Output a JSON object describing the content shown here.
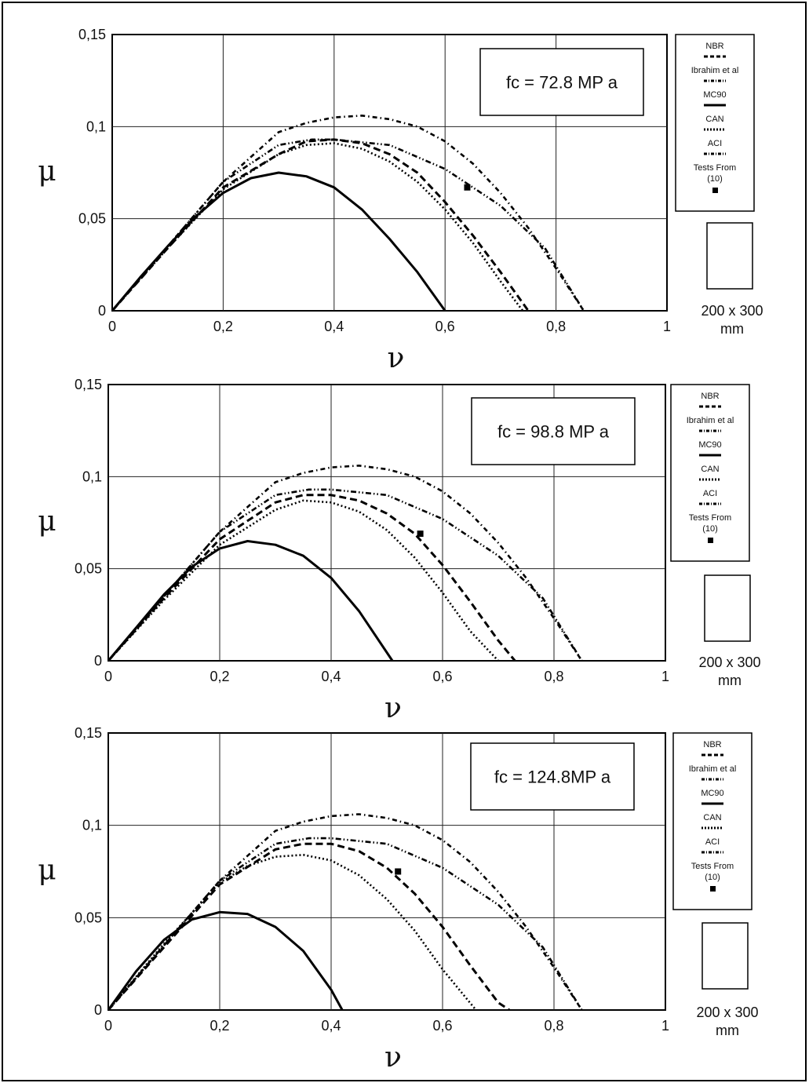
{
  "chart_data": [
    {
      "type": "line",
      "annotation": "fc = 72.8 MP a",
      "xlabel": "ν",
      "ylabel": "μ",
      "xlim": [
        0,
        1
      ],
      "ylim": [
        0,
        0.15
      ],
      "x_ticks": [
        "0",
        "0,2",
        "0,4",
        "0,6",
        "0,8",
        "1"
      ],
      "y_ticks": [
        "0",
        "0,05",
        "0,1",
        "0,15"
      ],
      "grid": true,
      "legend_position": "right",
      "legend": [
        "NBR",
        "Ibrahim et al",
        "MC90",
        "CAN",
        "ACI",
        "Tests From",
        "(10)"
      ],
      "section_note": [
        "200 x 300",
        "mm"
      ],
      "series": [
        {
          "name": "NBR",
          "style": "dashed",
          "x": [
            0,
            0.1,
            0.2,
            0.3,
            0.35,
            0.4,
            0.45,
            0.5,
            0.55,
            0.6,
            0.65,
            0.7,
            0.75
          ],
          "y": [
            0,
            0.034,
            0.067,
            0.085,
            0.092,
            0.093,
            0.091,
            0.085,
            0.075,
            0.059,
            0.041,
            0.021,
            0
          ]
        },
        {
          "name": "Ibrahim et al",
          "style": "dash-dot",
          "x": [
            0,
            0.1,
            0.2,
            0.3,
            0.35,
            0.4,
            0.45,
            0.5,
            0.55,
            0.6,
            0.65,
            0.7,
            0.75,
            0.8,
            0.85
          ],
          "y": [
            0,
            0.035,
            0.07,
            0.097,
            0.102,
            0.105,
            0.106,
            0.104,
            0.1,
            0.092,
            0.08,
            0.064,
            0.045,
            0.023,
            0
          ]
        },
        {
          "name": "MC90",
          "style": "solid",
          "x": [
            0,
            0.05,
            0.1,
            0.15,
            0.2,
            0.25,
            0.3,
            0.35,
            0.4,
            0.45,
            0.5,
            0.55,
            0.6
          ],
          "y": [
            0,
            0.018,
            0.035,
            0.051,
            0.064,
            0.072,
            0.075,
            0.073,
            0.067,
            0.055,
            0.039,
            0.021,
            0
          ]
        },
        {
          "name": "CAN",
          "style": "dotted",
          "x": [
            0,
            0.1,
            0.2,
            0.3,
            0.35,
            0.4,
            0.45,
            0.5,
            0.55,
            0.6,
            0.65,
            0.7,
            0.74
          ],
          "y": [
            0,
            0.034,
            0.066,
            0.085,
            0.09,
            0.091,
            0.088,
            0.081,
            0.07,
            0.055,
            0.037,
            0.016,
            0
          ]
        },
        {
          "name": "ACI",
          "style": "dash-dot-dot",
          "x": [
            0,
            0.1,
            0.2,
            0.3,
            0.36,
            0.4,
            0.5,
            0.6,
            0.7,
            0.78,
            0.85
          ],
          "y": [
            0,
            0.035,
            0.07,
            0.09,
            0.093,
            0.093,
            0.09,
            0.077,
            0.057,
            0.034,
            0
          ]
        }
      ],
      "tests": [
        {
          "x": 0.64,
          "y": 0.067
        }
      ]
    },
    {
      "type": "line",
      "annotation": "fc = 98.8 MP a",
      "xlabel": "ν",
      "ylabel": "μ",
      "xlim": [
        0,
        1
      ],
      "ylim": [
        0,
        0.15
      ],
      "x_ticks": [
        "0",
        "0,2",
        "0,4",
        "0,6",
        "0,8",
        "1"
      ],
      "y_ticks": [
        "0",
        "0,05",
        "0,1",
        "0,15"
      ],
      "grid": true,
      "legend_position": "right",
      "legend": [
        "NBR",
        "Ibrahim et al",
        "MC90",
        "CAN",
        "ACI",
        "Tests From",
        "(10)"
      ],
      "section_note": [
        "200 x 300",
        "mm"
      ],
      "series": [
        {
          "name": "NBR",
          "style": "dashed",
          "x": [
            0,
            0.1,
            0.2,
            0.3,
            0.35,
            0.4,
            0.45,
            0.5,
            0.55,
            0.6,
            0.65,
            0.7,
            0.73
          ],
          "y": [
            0,
            0.034,
            0.066,
            0.086,
            0.09,
            0.09,
            0.087,
            0.08,
            0.069,
            0.052,
            0.032,
            0.011,
            0
          ]
        },
        {
          "name": "Ibrahim et al",
          "style": "dash-dot",
          "x": [
            0,
            0.1,
            0.2,
            0.3,
            0.35,
            0.4,
            0.45,
            0.5,
            0.55,
            0.6,
            0.65,
            0.7,
            0.75,
            0.8,
            0.85
          ],
          "y": [
            0,
            0.035,
            0.07,
            0.097,
            0.102,
            0.105,
            0.106,
            0.104,
            0.1,
            0.092,
            0.08,
            0.064,
            0.045,
            0.023,
            0
          ]
        },
        {
          "name": "MC90",
          "style": "solid",
          "x": [
            0,
            0.05,
            0.1,
            0.15,
            0.2,
            0.25,
            0.3,
            0.35,
            0.4,
            0.45,
            0.51
          ],
          "y": [
            0,
            0.018,
            0.036,
            0.051,
            0.061,
            0.065,
            0.063,
            0.057,
            0.045,
            0.027,
            0
          ]
        },
        {
          "name": "CAN",
          "style": "dotted",
          "x": [
            0,
            0.1,
            0.2,
            0.3,
            0.35,
            0.4,
            0.45,
            0.5,
            0.55,
            0.6,
            0.65,
            0.7
          ],
          "y": [
            0,
            0.033,
            0.063,
            0.082,
            0.087,
            0.086,
            0.081,
            0.071,
            0.056,
            0.037,
            0.016,
            0
          ]
        },
        {
          "name": "ACI",
          "style": "dash-dot-dot",
          "x": [
            0,
            0.1,
            0.2,
            0.3,
            0.36,
            0.4,
            0.5,
            0.6,
            0.7,
            0.78,
            0.85
          ],
          "y": [
            0,
            0.035,
            0.07,
            0.09,
            0.093,
            0.093,
            0.09,
            0.077,
            0.057,
            0.034,
            0
          ]
        }
      ],
      "tests": [
        {
          "x": 0.56,
          "y": 0.069
        }
      ]
    },
    {
      "type": "line",
      "annotation": "fc = 124.8MP a",
      "xlabel": "ν",
      "ylabel": "μ",
      "xlim": [
        0,
        1
      ],
      "ylim": [
        0,
        0.15
      ],
      "x_ticks": [
        "0",
        "0,2",
        "0,4",
        "0,6",
        "0,8",
        "1"
      ],
      "y_ticks": [
        "0",
        "0,05",
        "0,1",
        "0,15"
      ],
      "grid": true,
      "legend_position": "right",
      "legend": [
        "NBR",
        "Ibrahim et al",
        "MC90",
        "CAN",
        "ACI",
        "Tests From",
        "(10)"
      ],
      "section_note": [
        "200 x 300",
        "mm"
      ],
      "series": [
        {
          "name": "NBR",
          "style": "dashed",
          "x": [
            0,
            0.1,
            0.2,
            0.3,
            0.35,
            0.4,
            0.45,
            0.5,
            0.55,
            0.6,
            0.65,
            0.7,
            0.72
          ],
          "y": [
            0,
            0.034,
            0.068,
            0.087,
            0.09,
            0.09,
            0.086,
            0.077,
            0.063,
            0.045,
            0.024,
            0.004,
            0
          ]
        },
        {
          "name": "Ibrahim et al",
          "style": "dash-dot",
          "x": [
            0,
            0.1,
            0.2,
            0.3,
            0.35,
            0.4,
            0.45,
            0.5,
            0.55,
            0.6,
            0.65,
            0.7,
            0.75,
            0.8,
            0.85
          ],
          "y": [
            0,
            0.035,
            0.07,
            0.097,
            0.102,
            0.105,
            0.106,
            0.104,
            0.1,
            0.092,
            0.08,
            0.064,
            0.045,
            0.023,
            0
          ]
        },
        {
          "name": "MC90",
          "style": "solid",
          "x": [
            0,
            0.05,
            0.1,
            0.15,
            0.2,
            0.25,
            0.3,
            0.35,
            0.4,
            0.42
          ],
          "y": [
            0,
            0.021,
            0.038,
            0.049,
            0.053,
            0.052,
            0.045,
            0.032,
            0.011,
            0
          ]
        },
        {
          "name": "CAN",
          "style": "dotted",
          "x": [
            0,
            0.1,
            0.2,
            0.25,
            0.3,
            0.35,
            0.4,
            0.45,
            0.5,
            0.55,
            0.6,
            0.66
          ],
          "y": [
            0,
            0.036,
            0.069,
            0.078,
            0.083,
            0.084,
            0.081,
            0.073,
            0.06,
            0.043,
            0.022,
            0
          ]
        },
        {
          "name": "ACI",
          "style": "dash-dot-dot",
          "x": [
            0,
            0.1,
            0.2,
            0.3,
            0.36,
            0.4,
            0.5,
            0.6,
            0.7,
            0.78,
            0.85
          ],
          "y": [
            0,
            0.035,
            0.07,
            0.09,
            0.093,
            0.093,
            0.09,
            0.077,
            0.057,
            0.034,
            0
          ]
        }
      ],
      "tests": [
        {
          "x": 0.52,
          "y": 0.075
        }
      ]
    }
  ]
}
